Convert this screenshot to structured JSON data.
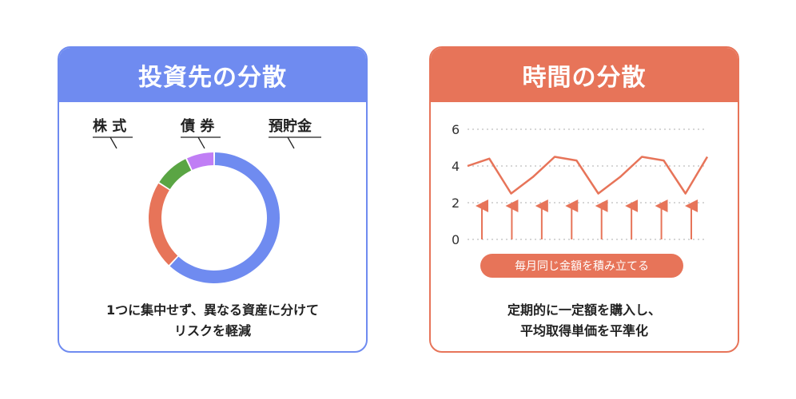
{
  "left_card": {
    "title": "投資先の分散",
    "labels": [
      "株 式",
      "債 券",
      "預貯金"
    ],
    "caption_lines": [
      "1つに集中せず、異なる資産に分けて",
      "リスクを軽減"
    ]
  },
  "right_card": {
    "title": "時間の分散",
    "pill": "毎月同じ金額を積み立てる",
    "caption_lines": [
      "定期的に一定額を購入し、",
      "平均取得単価を平準化"
    ]
  },
  "chart_data": [
    {
      "type": "pie",
      "categories": [
        "株式",
        "債券",
        "預貯金",
        ""
      ],
      "values": [
        62,
        22,
        9,
        7
      ],
      "colors": [
        "#6f8bf0",
        "#e77459",
        "#5aa544",
        "#c07ef5"
      ]
    },
    {
      "type": "line",
      "x": [
        0,
        1,
        2,
        3,
        4,
        5,
        6,
        7,
        8,
        9,
        10,
        11
      ],
      "values": [
        4.0,
        4.4,
        2.5,
        3.4,
        4.5,
        4.3,
        2.5,
        3.4,
        4.5,
        4.3,
        2.5,
        4.5
      ],
      "yticks": [
        0,
        2,
        4,
        6
      ],
      "ylim": [
        0,
        6
      ],
      "purchase_count": 8,
      "colors": {
        "line": "#e77459",
        "arrow": "#e77459",
        "grid": "#bdbdbd"
      }
    }
  ]
}
